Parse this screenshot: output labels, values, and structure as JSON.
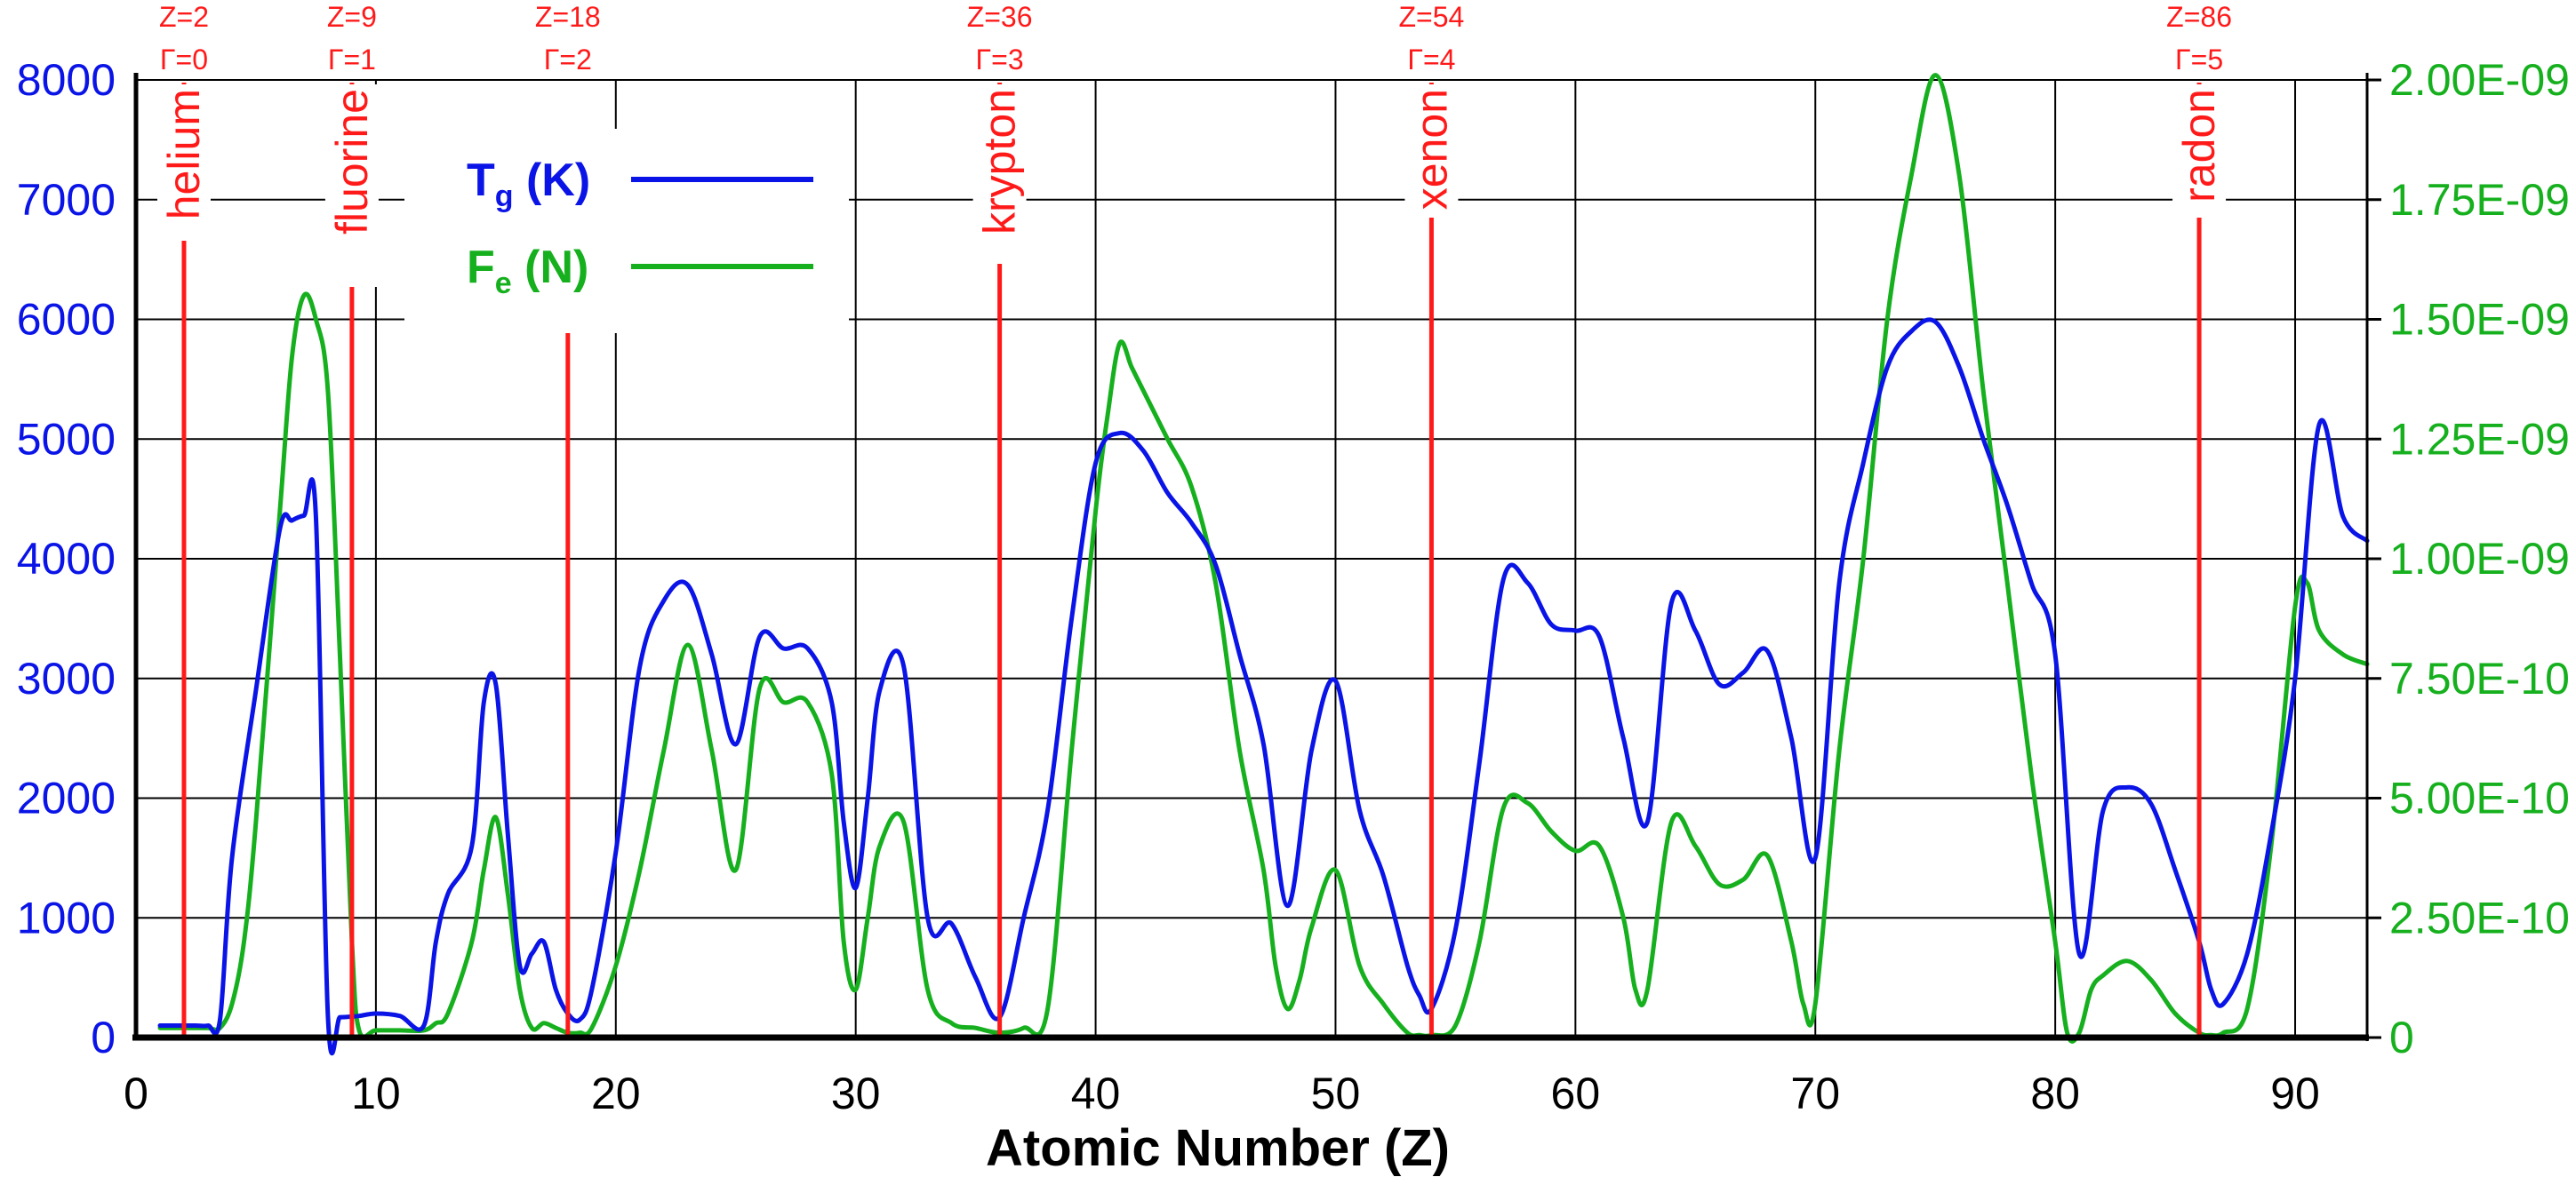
{
  "colors": {
    "tg": "#0a14e6",
    "fe": "#16b01e",
    "marker": "#ff1a1a",
    "grid": "#000000",
    "background": "#ffffff"
  },
  "chart_data": {
    "type": "line",
    "title": "",
    "xlabel": "Atomic Number (Z)",
    "ylabel": "",
    "xlim": [
      0,
      93
    ],
    "ylim_left": [
      0,
      8000
    ],
    "ylim_right": [
      0,
      2e-09
    ],
    "grid": true,
    "legend_position": "top-left",
    "x_ticks": [
      "0",
      "10",
      "20",
      "30",
      "40",
      "50",
      "60",
      "70",
      "80",
      "90"
    ],
    "y_left_ticks": [
      "0",
      "1000",
      "2000",
      "3000",
      "4000",
      "5000",
      "6000",
      "7000",
      "8000"
    ],
    "y_right_ticks": [
      "0",
      "2.50E-10",
      "5.00E-10",
      "7.50E-10",
      "1.00E-09",
      "1.25E-09",
      "1.50E-09",
      "1.75E-09",
      "2.00E-09"
    ],
    "legend": [
      {
        "symbol": "T",
        "subscript": "g",
        "unit": " (K)",
        "series": "tg"
      },
      {
        "symbol": "F",
        "subscript": "e",
        "unit": " (N)",
        "series": "fe"
      }
    ],
    "series": [
      {
        "key": "tg",
        "axis": "left",
        "x": [
          1,
          1.5,
          2,
          2.5,
          3,
          3.5,
          4,
          5,
          6,
          6.5,
          7,
          7.5,
          8,
          8.5,
          9,
          9.3,
          10,
          11,
          12,
          12.5,
          13,
          14,
          14.5,
          15,
          15.5,
          16,
          16.5,
          17,
          17.5,
          18,
          18.5,
          19,
          20,
          21,
          22,
          23,
          24,
          25,
          26,
          27,
          28,
          29,
          29.5,
          30,
          30.5,
          31,
          32,
          33,
          34,
          35,
          36,
          37,
          38,
          39,
          40,
          41,
          42,
          43,
          44,
          45,
          46,
          47,
          48,
          49,
          50,
          51,
          52,
          53,
          53.5,
          54,
          55,
          56,
          57,
          58,
          59,
          60,
          61,
          62,
          63,
          64,
          65,
          66,
          67,
          68,
          69,
          70,
          71,
          72,
          73,
          74,
          75,
          76,
          77,
          78,
          79,
          80,
          81,
          82,
          83,
          84,
          85,
          86,
          86.5,
          87,
          88,
          89,
          90,
          91,
          92,
          93
        ],
        "y": [
          100,
          100,
          100,
          100,
          100,
          150,
          1500,
          2900,
          4250,
          4320,
          4360,
          4350,
          180,
          170,
          175,
          180,
          200,
          180,
          100,
          800,
          1200,
          1600,
          2800,
          2950,
          1700,
          600,
          700,
          800,
          400,
          200,
          150,
          400,
          1550,
          3100,
          3650,
          3780,
          3200,
          2450,
          3350,
          3250,
          3250,
          2800,
          1800,
          1250,
          2000,
          2900,
          3100,
          1000,
          950,
          500,
          170,
          1000,
          1900,
          3500,
          4800,
          5050,
          4900,
          4550,
          4300,
          3950,
          3200,
          2450,
          1100,
          2400,
          2980,
          1900,
          1350,
          600,
          350,
          240,
          900,
          2300,
          3830,
          3800,
          3450,
          3400,
          3350,
          2500,
          1800,
          3630,
          3400,
          2950,
          3050,
          3230,
          2500,
          1500,
          3800,
          4800,
          5600,
          5900,
          5980,
          5600,
          5000,
          4450,
          3800,
          3200,
          700,
          1900,
          2090,
          1950,
          1400,
          800,
          400,
          280,
          700,
          1700,
          3000,
          5120,
          4350,
          4150
        ],
        "color_key": "tg"
      },
      {
        "key": "fe",
        "axis": "right",
        "x": [
          1,
          2,
          2.5,
          3,
          3.5,
          4,
          4.5,
          5,
          6,
          6.5,
          7,
          7.5,
          8,
          8.5,
          9,
          9.3,
          10,
          11,
          12,
          12.5,
          13,
          14,
          14.5,
          15,
          15.5,
          16,
          16.5,
          17,
          17.5,
          18,
          18.5,
          19,
          20,
          21,
          22,
          23,
          24,
          25,
          26,
          27,
          28,
          29,
          29.5,
          30,
          30.5,
          31,
          32,
          33,
          34,
          35,
          36,
          37,
          38,
          39,
          40,
          40.5,
          41,
          41.5,
          42,
          43,
          44,
          45,
          46,
          47,
          47.5,
          48,
          48.5,
          49,
          50,
          51,
          52,
          53,
          53.5,
          54,
          55,
          56,
          57,
          58,
          59,
          60,
          61,
          62,
          62.5,
          63,
          64,
          65,
          66,
          67,
          68,
          69,
          69.5,
          70,
          71,
          72,
          73,
          74,
          75,
          76,
          77,
          78,
          79,
          80,
          80.5,
          81,
          81.5,
          82,
          83,
          84,
          85,
          86,
          86.5,
          87,
          88,
          89,
          90,
          90.5,
          91,
          92,
          93
        ],
        "y": [
          2e-11,
          2e-11,
          2e-11,
          2e-11,
          2e-11,
          7e-11,
          2e-10,
          4.5e-10,
          1.1e-09,
          1.42e-09,
          1.55e-09,
          1.5e-09,
          1.35e-09,
          8e-10,
          2e-10,
          1.5e-11,
          1.5e-11,
          1.5e-11,
          1.5e-11,
          3e-11,
          5e-11,
          2e-10,
          3.5e-10,
          4.6e-10,
          3e-10,
          1e-10,
          2e-11,
          3e-11,
          2e-11,
          1e-11,
          1e-11,
          2e-11,
          1.5e-10,
          3.5e-10,
          6e-10,
          8.2e-10,
          6e-10,
          3.5e-10,
          7.3e-10,
          7e-10,
          7e-10,
          5.5e-10,
          2e-10,
          1e-10,
          2.5e-10,
          4e-10,
          4.5e-10,
          1e-10,
          3e-11,
          2e-11,
          1e-11,
          2e-11,
          6e-11,
          6e-10,
          1.1e-09,
          1.3e-09,
          1.45e-09,
          1.4e-09,
          1.35e-09,
          1.25e-09,
          1.15e-09,
          9.5e-10,
          6e-10,
          3.5e-10,
          1.5e-10,
          6e-11,
          1.2e-10,
          2.3e-10,
          3.5e-10,
          1.5e-10,
          7e-11,
          1e-11,
          5e-12,
          5e-12,
          2.5e-11,
          2e-10,
          4.8e-10,
          4.9e-10,
          4.3e-10,
          3.9e-10,
          4e-10,
          2.5e-10,
          1e-10,
          1e-10,
          4.5e-10,
          4e-10,
          3.2e-10,
          3.3e-10,
          3.8e-10,
          2e-10,
          7e-11,
          7e-11,
          6e-10,
          1e-09,
          1.5e-09,
          1.8e-09,
          2.01e-09,
          1.8e-09,
          1.35e-09,
          9.5e-10,
          5.5e-10,
          2e-10,
          1e-11,
          1e-11,
          1e-10,
          1.3e-10,
          1.6e-10,
          1.2e-10,
          5e-11,
          1e-11,
          5e-12,
          1e-11,
          6e-11,
          4e-10,
          9e-10,
          9.5e-10,
          8.5e-10,
          8e-10,
          7.8e-10
        ],
        "color_key": "fe"
      }
    ],
    "markers": [
      {
        "x": 2,
        "z_label": "Z=2",
        "gamma_label": "Γ=0",
        "name": "helium",
        "line_top": "full"
      },
      {
        "x": 9,
        "z_label": "Z=9",
        "gamma_label": "Γ=1",
        "name": "fluorine",
        "line_top": "full"
      },
      {
        "x": 18,
        "z_label": "Z=18",
        "gamma_label": "Γ=2",
        "name": "",
        "line_top": "short"
      },
      {
        "x": 36,
        "z_label": "Z=36",
        "gamma_label": "Γ=3",
        "name": "krypton",
        "line_top": "full"
      },
      {
        "x": 54,
        "z_label": "Z=54",
        "gamma_label": "Γ=4",
        "name": "xenon",
        "line_top": "full"
      },
      {
        "x": 86,
        "z_label": "Z=86",
        "gamma_label": "Γ=5",
        "name": "radon",
        "line_top": "full"
      }
    ]
  }
}
